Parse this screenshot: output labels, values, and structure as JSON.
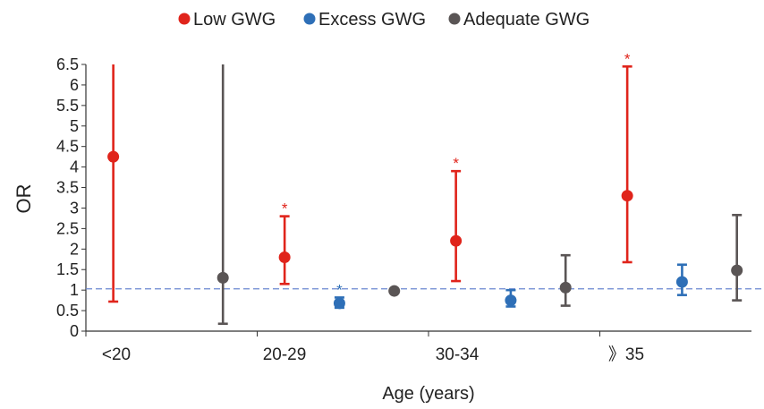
{
  "chart_data": {
    "type": "scatter",
    "title": "",
    "xlabel": "Age (years)",
    "ylabel": "OR",
    "ylim": [
      0,
      6.5
    ],
    "yticks": [
      "0",
      "0.5",
      "1",
      "1.5",
      "2",
      "2.5",
      "3",
      "3.5",
      "4",
      "4.5",
      "5",
      "5.5",
      "6",
      "6.5"
    ],
    "categories": [
      "<20",
      "20-29",
      "30-34",
      "》35"
    ],
    "reference_line": 1.03,
    "legend": {
      "placement": "top-center"
    },
    "grid": false,
    "series": [
      {
        "name": "Low GWG",
        "color": "#e0241b",
        "points": [
          {
            "category": "<20",
            "or": 4.25,
            "lower": 0.72,
            "upper": 6.5,
            "significant": false
          },
          {
            "category": "20-29",
            "or": 1.8,
            "lower": 1.15,
            "upper": 2.8,
            "significant": true
          },
          {
            "category": "30-34",
            "or": 2.2,
            "lower": 1.22,
            "upper": 3.9,
            "significant": true
          },
          {
            "category": "》35",
            "or": 3.3,
            "lower": 1.68,
            "upper": 6.45,
            "significant": true
          }
        ]
      },
      {
        "name": "Excess GWG",
        "color": "#2e6fb7",
        "points": [
          {
            "category": "<20",
            "or": null,
            "lower": null,
            "upper": null,
            "significant": false
          },
          {
            "category": "20-29",
            "or": 0.68,
            "lower": 0.57,
            "upper": 0.82,
            "significant": true
          },
          {
            "category": "30-34",
            "or": 0.75,
            "lower": 0.6,
            "upper": 1.0,
            "significant": false
          },
          {
            "category": "》35",
            "or": 1.2,
            "lower": 0.88,
            "upper": 1.62,
            "significant": false
          }
        ]
      },
      {
        "name": "Adequate GWG",
        "color": "#5a5555",
        "points": [
          {
            "category": "<20",
            "or": 1.3,
            "lower": 0.18,
            "upper": 6.5,
            "significant": false
          },
          {
            "category": "20-29",
            "or": 0.98,
            "lower": null,
            "upper": null,
            "significant": false
          },
          {
            "category": "30-34",
            "or": 1.06,
            "lower": 0.62,
            "upper": 1.85,
            "significant": false
          },
          {
            "category": "》35",
            "or": 1.48,
            "lower": 0.75,
            "upper": 2.83,
            "significant": false
          }
        ]
      }
    ],
    "significance_marker": "*"
  }
}
